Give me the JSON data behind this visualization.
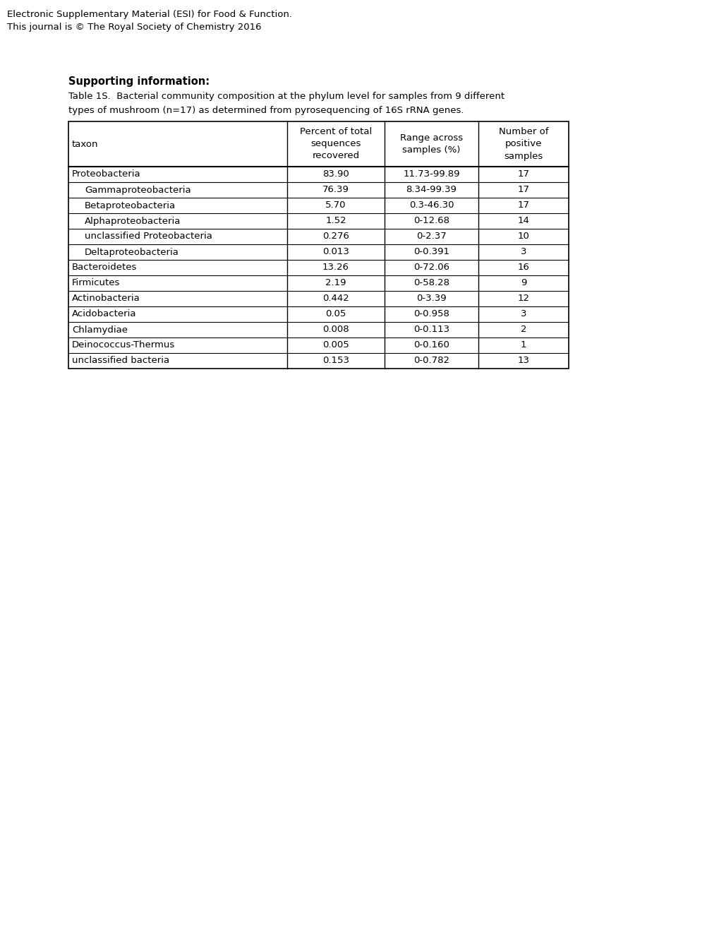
{
  "header_line1": "Electronic Supplementary Material (ESI) for Food & Function.",
  "header_line2": "This journal is © The Royal Society of Chemistry 2016",
  "supporting_info_label": "Supporting information:",
  "caption_line1": "Table 1S.  Bacterial community composition at the phylum level for samples from 9 different",
  "caption_line2": "types of mushroom (n=17) as determined from pyrosequencing of 16S rRNA genes.",
  "col_headers": [
    [
      "taxon",
      "",
      ""
    ],
    [
      "Percent of total",
      "sequences",
      "recovered"
    ],
    [
      "Range across",
      "samples (%)",
      ""
    ],
    [
      "Number of",
      "positive",
      "samples"
    ]
  ],
  "rows": [
    {
      "taxon": "Proteobacteria",
      "indent": false,
      "pct": "83.90",
      "range": "11.73-99.89",
      "n": "17"
    },
    {
      "taxon": "Gammaproteobacteria",
      "indent": true,
      "pct": "76.39",
      "range": "8.34-99.39",
      "n": "17"
    },
    {
      "taxon": "Betaproteobacteria",
      "indent": true,
      "pct": "5.70",
      "range": "0.3-46.30",
      "n": "17"
    },
    {
      "taxon": "Alphaproteobacteria",
      "indent": true,
      "pct": "1.52",
      "range": "0-12.68",
      "n": "14"
    },
    {
      "taxon": "unclassified Proteobacteria",
      "indent": true,
      "pct": "0.276",
      "range": "0-2.37",
      "n": "10"
    },
    {
      "taxon": "Deltaproteobacteria",
      "indent": true,
      "pct": "0.013",
      "range": "0-0.391",
      "n": "3"
    },
    {
      "taxon": "Bacteroidetes",
      "indent": false,
      "pct": "13.26",
      "range": "0-72.06",
      "n": "16"
    },
    {
      "taxon": "Firmicutes",
      "indent": false,
      "pct": "2.19",
      "range": "0-58.28",
      "n": "9"
    },
    {
      "taxon": "Actinobacteria",
      "indent": false,
      "pct": "0.442",
      "range": "0-3.39",
      "n": "12"
    },
    {
      "taxon": "Acidobacteria",
      "indent": false,
      "pct": "0.05",
      "range": "0-0.958",
      "n": "3"
    },
    {
      "taxon": "Chlamydiae",
      "indent": false,
      "pct": "0.008",
      "range": "0-0.113",
      "n": "2"
    },
    {
      "taxon": "Deinococcus-Thermus",
      "indent": false,
      "pct": "0.005",
      "range": "0-0.160",
      "n": "1"
    },
    {
      "taxon": "unclassified bacteria",
      "indent": false,
      "pct": "0.153",
      "range": "0-0.782",
      "n": "13"
    }
  ],
  "background_color": "#ffffff",
  "font_size": 9.5,
  "header_font_size": 9.5,
  "caption_font_size": 9.5
}
